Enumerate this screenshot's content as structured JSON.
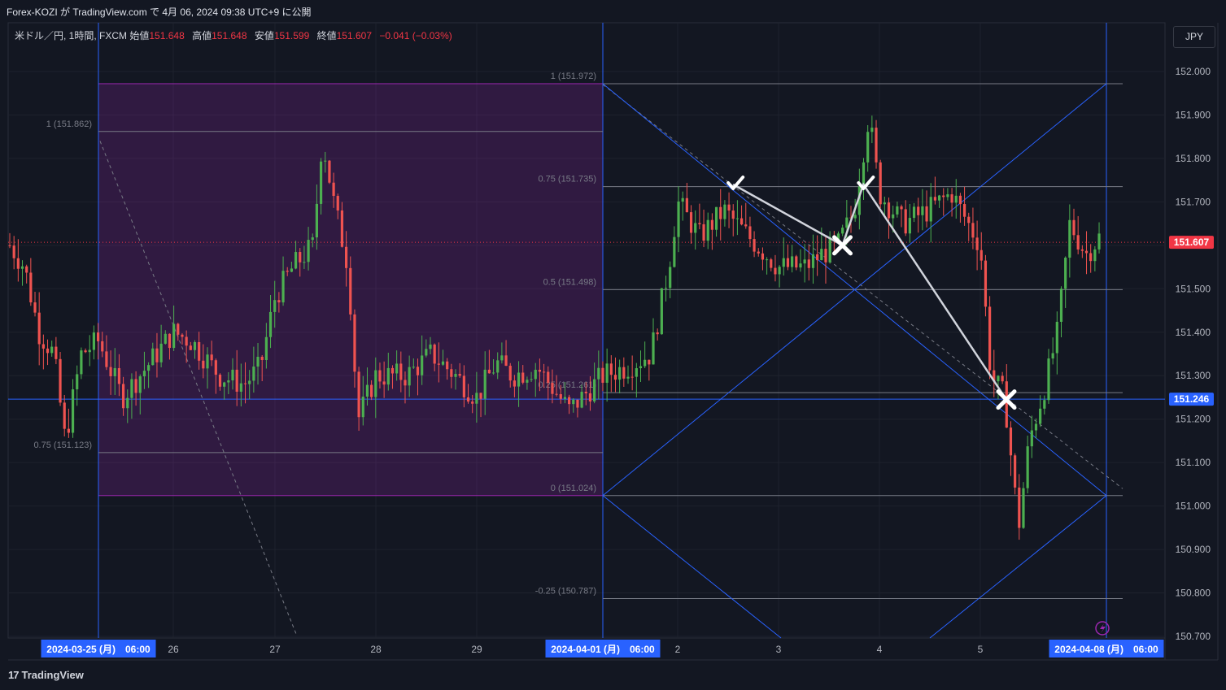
{
  "header": {
    "published": "Forex-KOZI が TradingView.com で 4月 06, 2024 09:38 UTC+9 に公開"
  },
  "legend": {
    "symbol": "米ドル／円, 1時間, FXCM",
    "open_label": "始値",
    "open": "151.648",
    "high_label": "高値",
    "high": "151.648",
    "low_label": "安値",
    "low": "151.599",
    "close_label": "終値",
    "close": "151.607",
    "change": "−0.041 (−0.03%)"
  },
  "currency_button": "JPY",
  "footer": {
    "brand": "TradingView",
    "logo": "17"
  },
  "colors": {
    "background": "#131722",
    "up": "#26a69a",
    "down": "#f23645",
    "fib_zone": "#9c27b0",
    "guide_lines": "#2962ff",
    "candle_up": "#4caf50",
    "candle_down": "#ef5350"
  },
  "chart_data": {
    "type": "candlestick",
    "symbol": "USD/JPY",
    "interval": "1h",
    "y_axis": {
      "min": 150.7,
      "max": 152.0,
      "ticks": [
        "152.000",
        "151.900",
        "151.800",
        "151.700",
        "151.600",
        "151.500",
        "151.400",
        "151.300",
        "151.200",
        "151.100",
        "151.000",
        "150.900",
        "150.800",
        "150.700"
      ]
    },
    "x_axis": {
      "ticks": [
        "2024-03-25 (月)　06:00",
        "26",
        "27",
        "28",
        "29",
        "2024-04-01 (月)　06:00",
        "2",
        "3",
        "4",
        "5",
        "2024-04-08 (月)　06:00"
      ],
      "highlighted": [
        "2024-03-25 (月)　06:00",
        "2024-04-01 (月)　06:00",
        "2024-04-08 (月)　06:00"
      ]
    },
    "price_labels": [
      {
        "label": "151.607",
        "value": 151.607,
        "color": "#f23645"
      },
      {
        "label": "151.246",
        "value": 151.246,
        "color": "#2962ff"
      }
    ],
    "fib_left": [
      {
        "label": "1 (151.862)",
        "value": 151.862
      },
      {
        "label": "0.75 (151.123)",
        "value": 151.123
      }
    ],
    "fib_right": [
      {
        "label": "1 (151.972)",
        "value": 151.972
      },
      {
        "label": "0.75 (151.735)",
        "value": 151.735
      },
      {
        "label": "0.5 (151.498)",
        "value": 151.498
      },
      {
        "label": "0.25 (151.261)",
        "value": 151.261
      },
      {
        "label": "0 (151.024)",
        "value": 151.024
      },
      {
        "label": "-0.25 (150.787)",
        "value": 150.787
      }
    ],
    "zone": {
      "from_date": "2024-03-25 06:00",
      "to_date": "2024-04-01 06:00",
      "top": 151.972,
      "bottom": 151.024
    },
    "markers": [
      {
        "type": "check",
        "date": "2024-04-02 13:00",
        "value": 151.74
      },
      {
        "type": "x",
        "date": "2024-04-03 15:00",
        "value": 151.6
      },
      {
        "type": "check",
        "date": "2024-04-03 20:00",
        "value": 151.74
      },
      {
        "type": "x",
        "date": "2024-04-05 06:00",
        "value": 151.245
      }
    ]
  }
}
